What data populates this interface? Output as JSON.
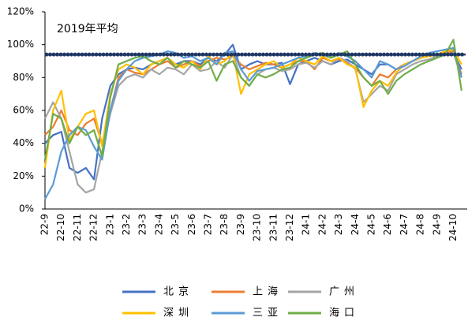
{
  "chart_data": {
    "type": "line",
    "reference": {
      "label": "2019年平均",
      "value": 94,
      "color": "#1f3864"
    },
    "categories": [
      "22-9",
      null,
      "22-10",
      null,
      "22-11",
      null,
      "22-12",
      null,
      "23-1",
      null,
      "23-2",
      null,
      "23-3",
      null,
      "23-4",
      null,
      "23-5",
      null,
      "23-6",
      null,
      "23-7",
      null,
      "23-8",
      null,
      "23-9",
      null,
      "23-10",
      null,
      "23-11",
      null,
      "23-12",
      null,
      "24-1",
      null,
      "24-2",
      null,
      "24-3",
      null,
      "24-4",
      null,
      "24-5",
      null,
      "24-6",
      null,
      "24-7",
      null,
      "24-8",
      null,
      "24-9",
      null,
      "24-10",
      null
    ],
    "series": [
      {
        "name": "北京",
        "color": "#4472c4",
        "values": [
          40,
          45,
          47,
          25,
          22,
          25,
          18,
          55,
          75,
          82,
          85,
          86,
          85,
          88,
          90,
          92,
          88,
          90,
          90,
          88,
          92,
          90,
          94,
          100,
          85,
          88,
          90,
          88,
          88,
          89,
          76,
          88,
          90,
          92,
          90,
          88,
          90,
          91,
          88,
          85,
          82,
          88,
          88,
          85,
          88,
          90,
          92,
          94,
          93,
          95,
          95,
          85
        ]
      },
      {
        "name": "上海",
        "color": "#ed7d31",
        "values": [
          45,
          50,
          60,
          48,
          45,
          52,
          55,
          40,
          60,
          80,
          85,
          83,
          82,
          85,
          88,
          90,
          86,
          88,
          90,
          87,
          90,
          92,
          91,
          93,
          88,
          85,
          87,
          89,
          88,
          86,
          88,
          90,
          90,
          85,
          92,
          90,
          91,
          89,
          86,
          80,
          75,
          82,
          80,
          85,
          88,
          90,
          92,
          93,
          94,
          95,
          96,
          82
        ]
      },
      {
        "name": "广州",
        "color": "#a5a5a5",
        "values": [
          55,
          65,
          55,
          35,
          15,
          10,
          12,
          35,
          58,
          75,
          80,
          82,
          80,
          85,
          82,
          86,
          85,
          82,
          88,
          84,
          85,
          90,
          86,
          94,
          80,
          75,
          82,
          85,
          86,
          84,
          85,
          88,
          89,
          86,
          90,
          88,
          92,
          90,
          85,
          65,
          70,
          75,
          72,
          82,
          85,
          88,
          90,
          91,
          93,
          94,
          95,
          80
        ]
      },
      {
        "name": "深圳",
        "color": "#ffc000",
        "values": [
          25,
          60,
          72,
          42,
          50,
          58,
          60,
          38,
          70,
          85,
          88,
          86,
          82,
          88,
          90,
          92,
          88,
          86,
          90,
          85,
          93,
          88,
          90,
          95,
          70,
          82,
          85,
          88,
          90,
          86,
          88,
          92,
          90,
          88,
          93,
          90,
          92,
          88,
          86,
          62,
          72,
          78,
          75,
          83,
          88,
          90,
          92,
          93,
          94,
          96,
          97,
          88
        ]
      },
      {
        "name": "三亚",
        "color": "#5b9bd5",
        "values": [
          6,
          15,
          35,
          45,
          50,
          48,
          38,
          30,
          60,
          78,
          85,
          90,
          92,
          93,
          94,
          96,
          95,
          92,
          93,
          90,
          92,
          88,
          95,
          96,
          85,
          78,
          84,
          85,
          86,
          88,
          90,
          92,
          93,
          95,
          94,
          92,
          95,
          93,
          90,
          85,
          80,
          90,
          88,
          85,
          87,
          90,
          93,
          95,
          96,
          97,
          98,
          80
        ]
      },
      {
        "name": "海口",
        "color": "#70ad47",
        "values": [
          30,
          58,
          55,
          40,
          50,
          45,
          48,
          32,
          68,
          88,
          90,
          92,
          93,
          90,
          88,
          92,
          86,
          90,
          88,
          86,
          90,
          78,
          88,
          90,
          80,
          75,
          82,
          80,
          82,
          85,
          86,
          90,
          92,
          94,
          95,
          92,
          94,
          96,
          88,
          80,
          75,
          78,
          70,
          78,
          82,
          85,
          88,
          90,
          92,
          94,
          103,
          72
        ]
      }
    ],
    "ylim": [
      0,
      120
    ],
    "yticks": [
      {
        "value": 0,
        "label": "0%"
      },
      {
        "value": 20,
        "label": "20%"
      },
      {
        "value": 40,
        "label": "40%"
      },
      {
        "value": 60,
        "label": "60%"
      },
      {
        "value": 80,
        "label": "80%"
      },
      {
        "value": 100,
        "label": "100%"
      },
      {
        "value": 120,
        "label": "120%"
      }
    ]
  }
}
